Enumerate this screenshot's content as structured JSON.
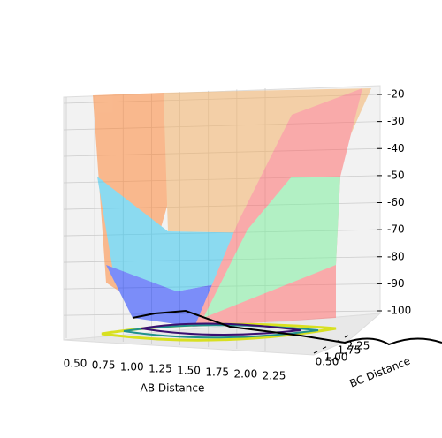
{
  "chart_data": {
    "type": "surface3d",
    "xlabel": "AB Distance",
    "ylabel": "BC Distance",
    "xlim": [
      0.5,
      2.25
    ],
    "xticks": [
      {
        "value": 0.5,
        "label": "0.50"
      },
      {
        "value": 0.75,
        "label": "0.75"
      },
      {
        "value": 1.0,
        "label": "1.00"
      },
      {
        "value": 1.25,
        "label": "1.25"
      },
      {
        "value": 1.5,
        "label": "1.50"
      },
      {
        "value": 1.75,
        "label": "1.75"
      },
      {
        "value": 2.0,
        "label": "2.00"
      },
      {
        "value": 2.25,
        "label": "2.25"
      }
    ],
    "ylim": [
      0.5,
      2.25
    ],
    "yticks": [
      {
        "value": 0.5,
        "label": "0.50"
      },
      {
        "value": 1.0,
        "label": "1.00"
      },
      {
        "value": 1.75,
        "label": "1.75"
      },
      {
        "value": 2.25,
        "label": "2.25"
      }
    ],
    "zlim": [
      -20,
      -100
    ],
    "zticks": [
      -20,
      -30,
      -40,
      -50,
      -60,
      -70,
      -80,
      -90,
      -100
    ],
    "grid": true
  }
}
